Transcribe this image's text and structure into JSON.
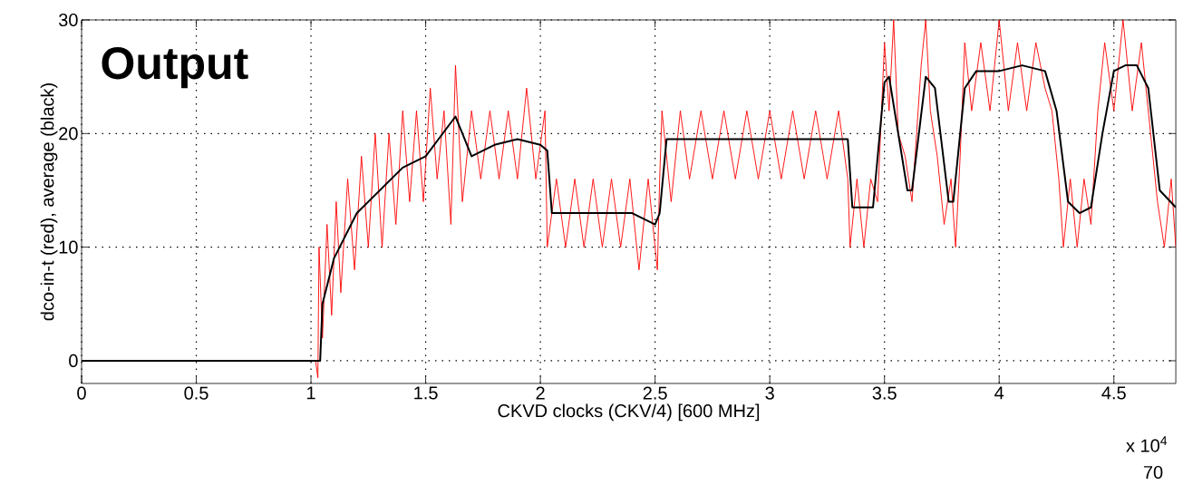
{
  "chart_data": {
    "type": "line",
    "xlabel": "CKVD clocks (CKV/4) [600 MHz]",
    "ylabel": "dco-in-t (red), average (black)",
    "annotations": [
      "Output",
      "x 10$^{4}$",
      "70"
    ],
    "xlim": [
      0,
      4.77
    ],
    "ylim": [
      -2,
      30
    ],
    "xticks": [
      0,
      0.5,
      1,
      1.5,
      2,
      2.5,
      3,
      3.5,
      4,
      4.5
    ],
    "yticks": [
      0,
      10,
      20,
      30
    ],
    "grid": true,
    "marker": "none",
    "line_style": "solid",
    "series": [
      {
        "color": "#ff0000",
        "x": [
          0,
          1.02,
          1.03,
          1.035,
          1.05,
          1.07,
          1.09,
          1.11,
          1.13,
          1.16,
          1.19,
          1.22,
          1.25,
          1.28,
          1.31,
          1.34,
          1.37,
          1.4,
          1.43,
          1.46,
          1.49,
          1.52,
          1.55,
          1.58,
          1.61,
          1.63,
          1.66,
          1.7,
          1.74,
          1.78,
          1.82,
          1.86,
          1.9,
          1.94,
          1.98,
          2.02,
          2.03,
          2.07,
          2.11,
          2.15,
          2.19,
          2.23,
          2.27,
          2.31,
          2.35,
          2.39,
          2.43,
          2.47,
          2.51,
          2.52,
          2.53,
          2.57,
          2.61,
          2.65,
          2.7,
          2.75,
          2.8,
          2.85,
          2.9,
          2.95,
          3.0,
          3.05,
          3.1,
          3.15,
          3.2,
          3.25,
          3.3,
          3.34,
          3.35,
          3.38,
          3.41,
          3.44,
          3.47,
          3.5,
          3.52,
          3.54,
          3.56,
          3.59,
          3.62,
          3.64,
          3.66,
          3.68,
          3.7,
          3.73,
          3.76,
          3.79,
          3.81,
          3.83,
          3.85,
          3.88,
          3.92,
          3.96,
          4.0,
          4.04,
          4.08,
          4.12,
          4.16,
          4.2,
          4.23,
          4.26,
          4.28,
          4.31,
          4.34,
          4.37,
          4.4,
          4.43,
          4.46,
          4.5,
          4.54,
          4.58,
          4.62,
          4.66,
          4.69,
          4.72,
          4.75,
          4.77
        ],
        "values": [
          0,
          0,
          -1.5,
          10,
          2,
          12,
          4,
          14,
          6,
          16,
          8,
          18,
          10,
          20,
          10,
          20,
          12,
          22,
          14,
          22,
          14,
          24,
          16,
          22,
          12,
          26,
          14,
          22,
          16,
          22,
          16,
          22,
          16,
          24,
          16,
          22,
          10,
          16,
          10,
          16,
          10,
          16,
          10,
          16,
          10,
          16,
          8,
          16,
          8,
          16,
          22,
          14,
          22,
          16,
          22,
          16,
          22,
          16,
          22,
          16,
          22,
          16,
          22,
          16,
          22,
          16,
          22,
          16,
          10,
          16,
          10,
          16,
          14,
          28,
          22,
          30,
          20,
          18,
          14,
          20,
          26,
          30,
          22,
          18,
          12,
          16,
          10,
          18,
          28,
          22,
          28,
          22,
          30,
          22,
          28,
          22,
          28,
          24,
          22,
          16,
          10,
          16,
          10,
          16,
          12,
          22,
          28,
          22,
          30,
          22,
          28,
          20,
          14,
          10,
          16,
          10
        ]
      },
      {
        "color": "#000000",
        "x": [
          0,
          1.04,
          1.05,
          1.1,
          1.15,
          1.2,
          1.3,
          1.4,
          1.5,
          1.63,
          1.7,
          1.8,
          1.9,
          2.0,
          2.03,
          2.05,
          2.2,
          2.4,
          2.5,
          2.52,
          2.55,
          2.6,
          3.0,
          3.34,
          3.36,
          3.45,
          3.5,
          3.52,
          3.6,
          3.62,
          3.68,
          3.72,
          3.78,
          3.8,
          3.85,
          3.9,
          4.0,
          4.1,
          4.2,
          4.25,
          4.3,
          4.35,
          4.4,
          4.45,
          4.5,
          4.55,
          4.6,
          4.65,
          4.7,
          4.77
        ],
        "values": [
          0,
          0,
          5,
          9,
          11,
          13,
          15,
          17,
          18,
          21.5,
          18,
          19,
          19.5,
          19,
          18.5,
          13,
          13,
          13,
          12,
          13,
          19.5,
          19.5,
          19.5,
          19.5,
          13.5,
          13.5,
          24.5,
          25,
          15,
          15,
          25,
          24,
          14,
          14,
          24,
          25.5,
          25.5,
          26,
          25.5,
          22,
          14,
          13,
          13.5,
          20,
          25.5,
          26,
          26,
          24,
          15,
          13.5
        ]
      }
    ]
  }
}
